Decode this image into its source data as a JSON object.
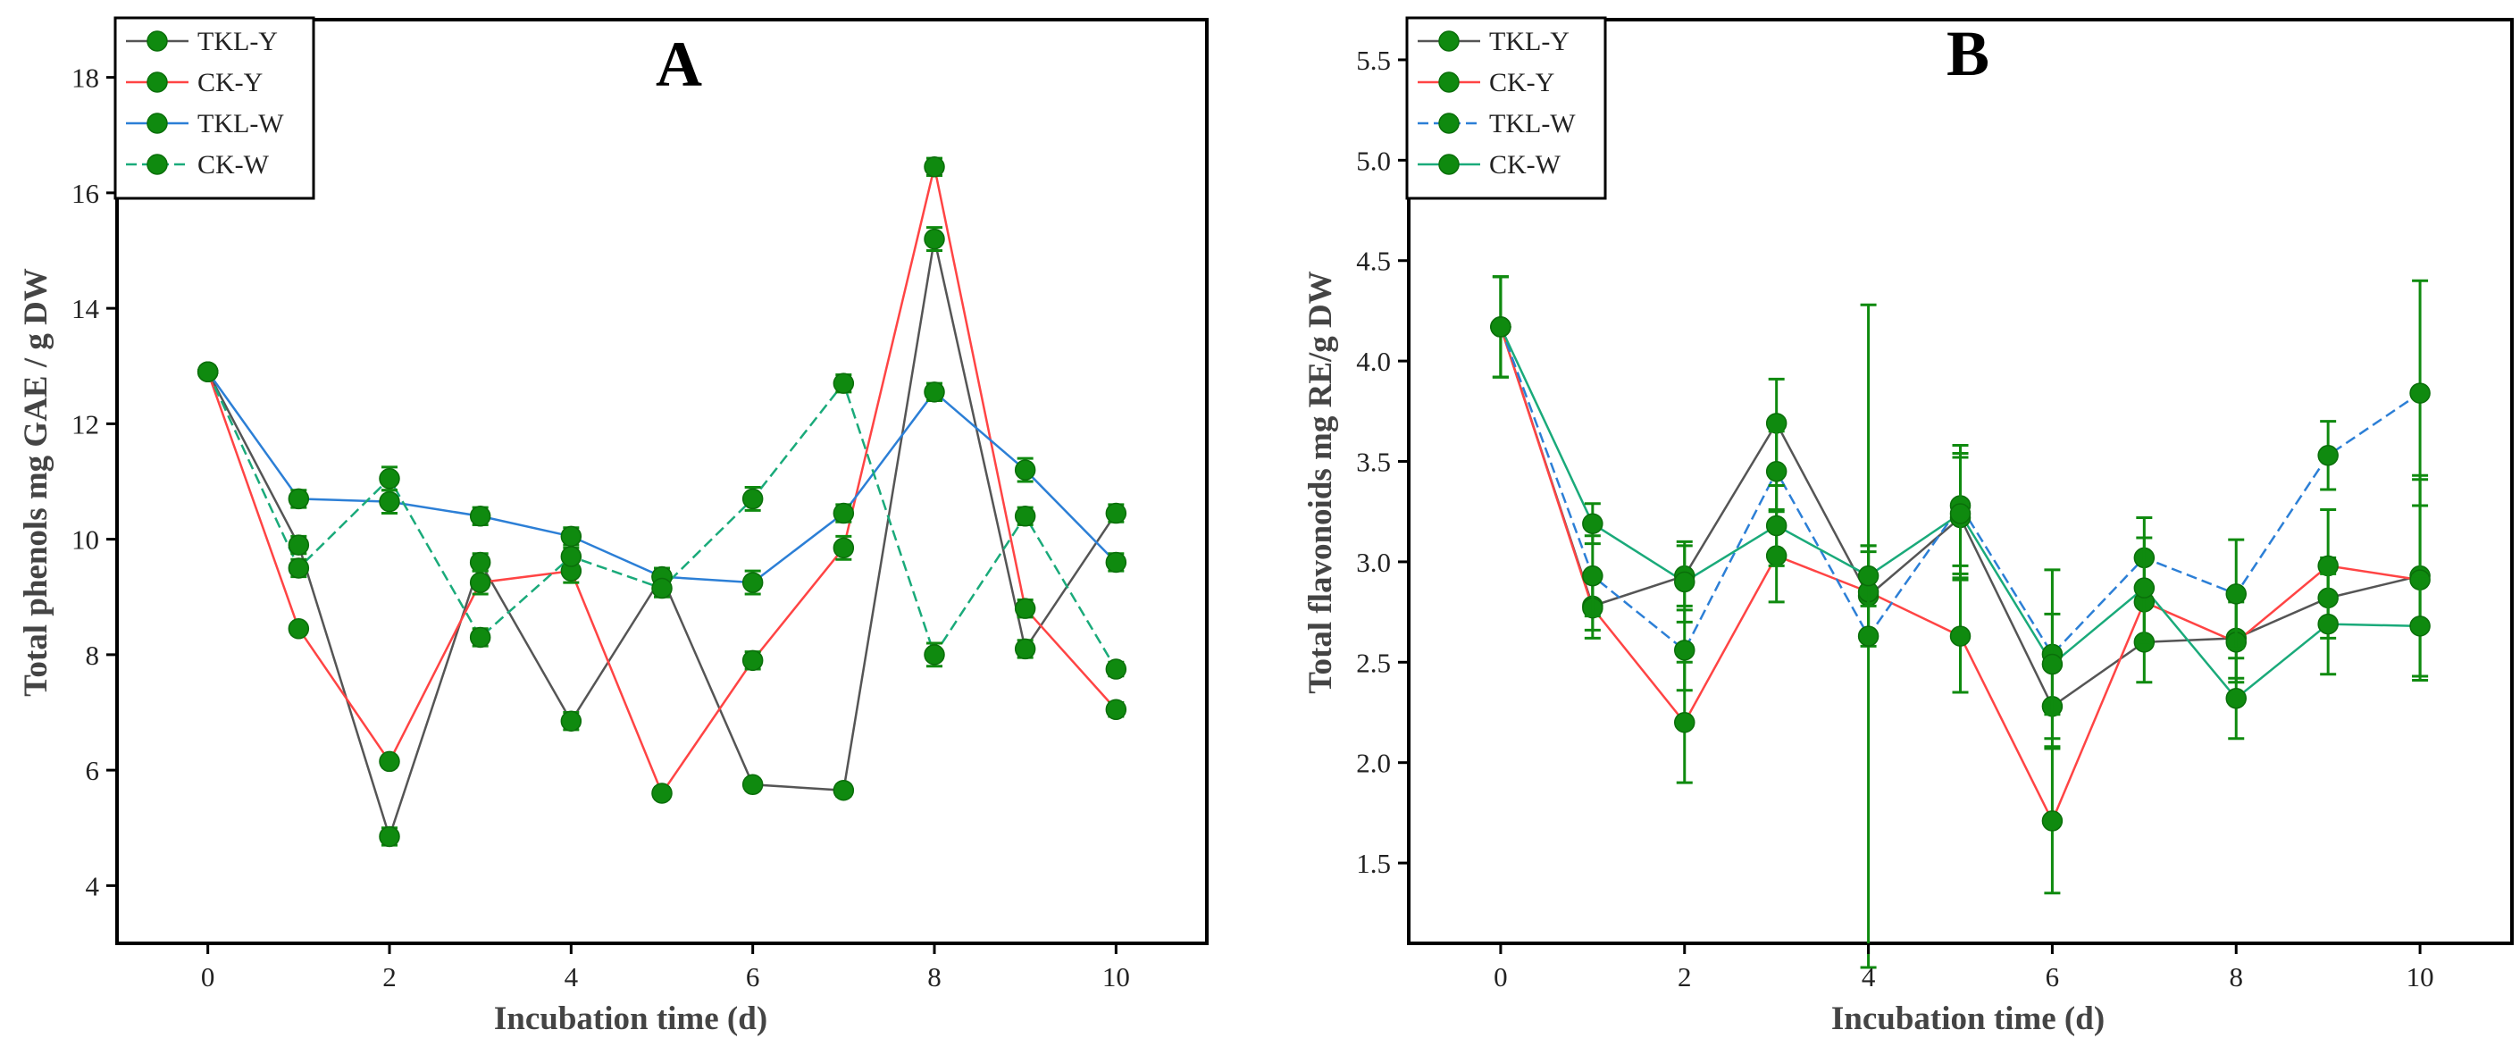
{
  "chart_data": [
    {
      "type": "line",
      "panel_label": "A",
      "xlabel": "Incubation time (d)",
      "ylabel": "Total phenols mg GAE / g DW",
      "xlim": [
        -1,
        11
      ],
      "ylim": [
        3,
        19
      ],
      "xticks": [
        0,
        2,
        4,
        6,
        8,
        10
      ],
      "yticks": [
        4,
        6,
        8,
        10,
        12,
        14,
        16,
        18
      ],
      "x": [
        0,
        1,
        2,
        3,
        4,
        5,
        6,
        7,
        8,
        9,
        10
      ],
      "legend_position": "top-left",
      "series": [
        {
          "name": "TKL-Y",
          "color": "#555555",
          "dash": "",
          "values": [
            12.9,
            9.9,
            4.85,
            9.6,
            6.85,
            9.35,
            5.75,
            5.65,
            15.2,
            8.1,
            10.45
          ],
          "errors": [
            0.1,
            0.15,
            0.15,
            0.15,
            0.15,
            0.15,
            0.1,
            0.1,
            0.2,
            0.15,
            0.15
          ]
        },
        {
          "name": "CK-Y",
          "color": "#ff4444",
          "dash": "",
          "values": [
            12.9,
            8.45,
            6.15,
            9.25,
            9.45,
            5.6,
            7.9,
            9.85,
            16.45,
            8.8,
            7.05
          ],
          "errors": [
            0.1,
            0.1,
            0.1,
            0.2,
            0.2,
            0.1,
            0.15,
            0.2,
            0.15,
            0.15,
            0.12
          ]
        },
        {
          "name": "TKL-W",
          "color": "#2c7fd6",
          "dash": "",
          "values": [
            12.9,
            10.7,
            10.65,
            10.4,
            10.05,
            9.35,
            9.25,
            10.45,
            12.55,
            11.2,
            9.6
          ],
          "errors": [
            0.1,
            0.15,
            0.2,
            0.15,
            0.15,
            0.15,
            0.2,
            0.15,
            0.15,
            0.2,
            0.15
          ]
        },
        {
          "name": "CK-W",
          "color": "#1aaa7a",
          "dash": "12 6",
          "values": [
            12.9,
            9.5,
            11.05,
            8.3,
            9.7,
            9.15,
            10.7,
            12.7,
            8.0,
            10.4,
            7.75
          ],
          "errors": [
            0.1,
            0.15,
            0.2,
            0.15,
            0.15,
            0.15,
            0.2,
            0.15,
            0.2,
            0.15,
            0.12
          ]
        }
      ]
    },
    {
      "type": "line",
      "panel_label": "B",
      "xlabel": "Incubation time (d)",
      "ylabel": "Total flavonoids mg RE/g DW",
      "xlim": [
        -1,
        11
      ],
      "ylim": [
        1.1,
        5.7
      ],
      "xticks": [
        0,
        2,
        4,
        6,
        8,
        10
      ],
      "yticks": [
        1.5,
        2.0,
        2.5,
        3.0,
        3.5,
        4.0,
        4.5,
        5.0,
        5.5
      ],
      "x": [
        0,
        1,
        2,
        3,
        4,
        5,
        6,
        7,
        8,
        9,
        10
      ],
      "legend_position": "top-left",
      "series": [
        {
          "name": "TKL-Y",
          "color": "#555555",
          "dash": "",
          "values": [
            4.17,
            2.78,
            2.93,
            3.69,
            2.83,
            3.22,
            2.28,
            2.6,
            2.62,
            2.82,
            2.93
          ],
          "errors": [
            0.25,
            0.12,
            0.15,
            0.22,
            0.25,
            0.3,
            0.2,
            0.2,
            0.2,
            0.2,
            0.5
          ]
        },
        {
          "name": "CK-Y",
          "color": "#ff4444",
          "dash": "",
          "values": [
            4.17,
            2.77,
            2.2,
            3.03,
            2.85,
            2.63,
            1.71,
            2.8,
            2.6,
            2.98,
            2.91
          ],
          "errors": [
            0.25,
            0.15,
            0.3,
            0.23,
            0.2,
            0.28,
            0.36,
            0.2,
            0.2,
            0.28,
            0.5
          ]
        },
        {
          "name": "TKL-W",
          "color": "#2c7fd6",
          "dash": "12 6",
          "values": [
            4.17,
            2.93,
            2.56,
            3.45,
            2.63,
            3.28,
            2.54,
            3.02,
            2.84,
            3.53,
            3.84
          ],
          "errors": [
            0.25,
            0.2,
            0.2,
            0.2,
            1.65,
            0.3,
            0.42,
            0.2,
            0.27,
            0.17,
            0.56
          ]
        },
        {
          "name": "CK-W",
          "color": "#1aaa7a",
          "dash": "",
          "values": [
            4.17,
            3.19,
            2.9,
            3.18,
            2.93,
            3.24,
            2.49,
            2.87,
            2.32,
            2.69,
            2.68
          ],
          "errors": [
            0.25,
            0.1,
            0.2,
            0.2,
            0.15,
            0.3,
            0.25,
            0.25,
            0.2,
            0.25,
            0.25
          ]
        }
      ]
    }
  ],
  "marker_color": "#0f8a0f"
}
